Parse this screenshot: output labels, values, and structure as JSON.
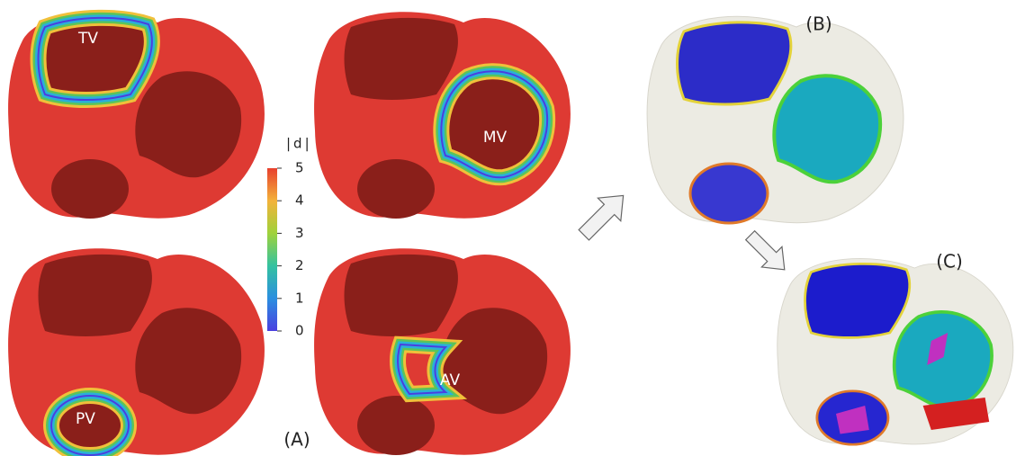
{
  "panel_a": {
    "label": "(A)",
    "valves": [
      "TV",
      "MV",
      "PV",
      "AV"
    ],
    "colorbar": {
      "title": "|d|",
      "ticks": [
        0,
        1,
        2,
        3,
        4,
        5
      ]
    }
  },
  "panel_b": {
    "label": "(B)"
  },
  "panel_c": {
    "label": "(C)"
  }
}
